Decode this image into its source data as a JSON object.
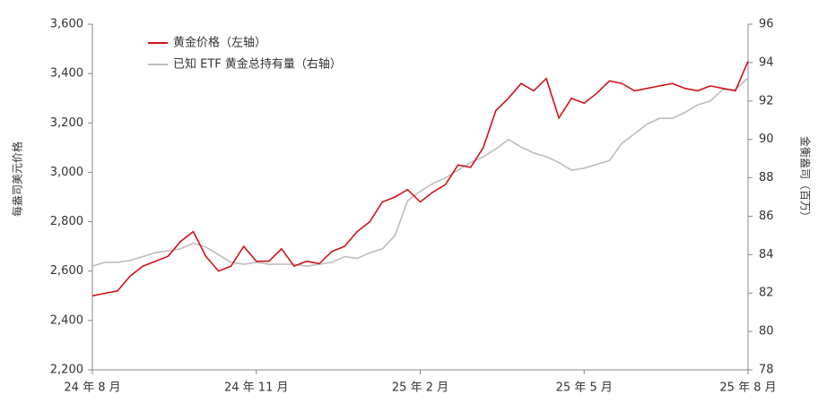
{
  "chart_data": {
    "type": "line",
    "y_label": "每盎司美元价格",
    "y2_label": "金衡盎司（百万）",
    "categories": [
      "24 年 8 月",
      null,
      null,
      null,
      null,
      null,
      null,
      null,
      null,
      null,
      null,
      null,
      null,
      "24 年 11 月",
      null,
      null,
      null,
      null,
      null,
      null,
      null,
      null,
      null,
      null,
      null,
      null,
      "25 年 2 月",
      null,
      null,
      null,
      null,
      null,
      null,
      null,
      null,
      null,
      null,
      null,
      null,
      "25 年 5 月",
      null,
      null,
      null,
      null,
      null,
      null,
      null,
      null,
      null,
      null,
      null,
      null,
      "25 年 8 月"
    ],
    "series": [
      {
        "name": "黄金价格（左轴）",
        "color": "#d0121b",
        "values": [
          2500,
          2510,
          2520,
          2580,
          2620,
          2640,
          2660,
          2720,
          2760,
          2660,
          2600,
          2620,
          2700,
          2640,
          2640,
          2690,
          2620,
          2640,
          2630,
          2680,
          2700,
          2760,
          2800,
          2880,
          2900,
          2930,
          2880,
          2920,
          2950,
          3030,
          3020,
          3100,
          3250,
          3300,
          3360,
          3330,
          3380,
          3220,
          3300,
          3280,
          3320,
          3370,
          3360,
          3330,
          3340,
          3350,
          3360,
          3340,
          3330,
          3350,
          3340,
          3330,
          3450
        ]
      },
      {
        "name": "已知 ETF 黄金总持有量（右轴）",
        "color": "#bdbdbd",
        "axis": "y2",
        "values": [
          83.4,
          83.6,
          83.6,
          83.7,
          83.9,
          84.1,
          84.2,
          84.3,
          84.6,
          84.4,
          84,
          83.6,
          83.5,
          83.6,
          83.5,
          83.5,
          83.5,
          83.4,
          83.5,
          83.6,
          83.9,
          83.8,
          84.1,
          84.3,
          85,
          86.8,
          87.3,
          87.7,
          88,
          88.4,
          88.8,
          89.1,
          89.5,
          90,
          89.6,
          89.3,
          89.1,
          88.8,
          88.4,
          88.5,
          88.7,
          88.9,
          89.8,
          90.3,
          90.8,
          91.1,
          91.1,
          91.4,
          91.8,
          92,
          92.6,
          92.6,
          93.2
        ]
      }
    ],
    "ylim": [
      2200,
      3600
    ],
    "yticks": [
      {
        "value": 2200,
        "label": "2,200"
      },
      {
        "value": 2400,
        "label": "2,400"
      },
      {
        "value": 2600,
        "label": "2,600"
      },
      {
        "value": 2800,
        "label": "2,800"
      },
      {
        "value": 3000,
        "label": "3,000"
      },
      {
        "value": 3200,
        "label": "3,200"
      },
      {
        "value": 3400,
        "label": "3,400"
      },
      {
        "value": 3600,
        "label": "3,600"
      }
    ],
    "y2lim": [
      78,
      96
    ],
    "y2ticks": [
      78,
      80,
      82,
      84,
      86,
      88,
      90,
      92,
      94,
      96
    ],
    "legend": "upper left"
  }
}
